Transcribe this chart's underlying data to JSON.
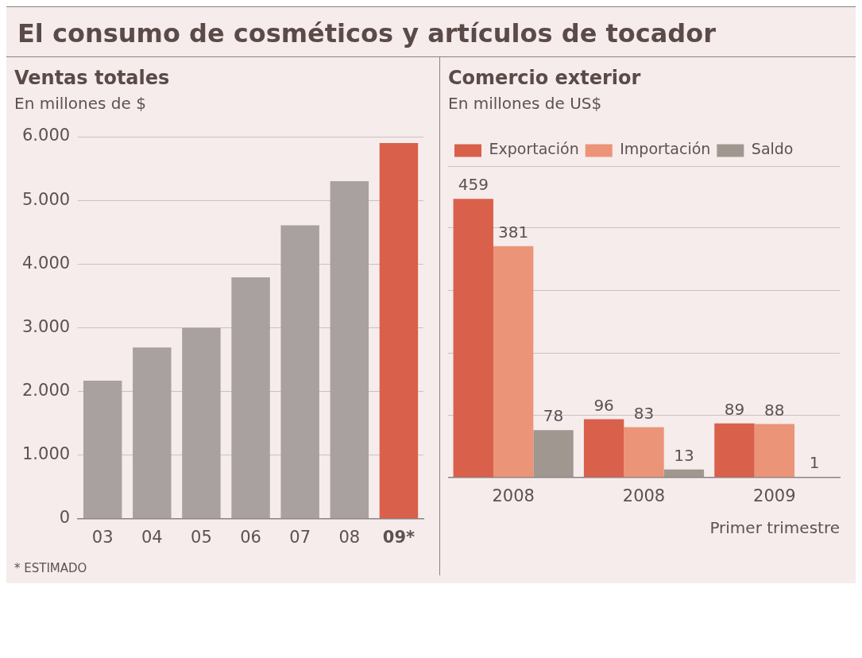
{
  "chart_data": [
    {
      "type": "bar",
      "title": "El consumo de cosméticos y artículos de tocador",
      "subtitle": "Ventas totales",
      "ylabel": "En millones de $",
      "categories": [
        "03",
        "04",
        "05",
        "06",
        "07",
        "08",
        "09*"
      ],
      "values": [
        2170,
        2690,
        3000,
        3790,
        4610,
        5300,
        5900
      ],
      "colors": [
        "#a9a19f",
        "#a9a19f",
        "#a9a19f",
        "#a9a19f",
        "#a9a19f",
        "#a9a19f",
        "#d9604a"
      ],
      "ylim": [
        0,
        6000
      ],
      "yticks": [
        {
          "value": 0,
          "label": "0"
        },
        {
          "value": 1000,
          "label": "1.000"
        },
        {
          "value": 2000,
          "label": "2.000"
        },
        {
          "value": 3000,
          "label": "3.000"
        },
        {
          "value": 4000,
          "label": "4.000"
        },
        {
          "value": 5000,
          "label": "5.000"
        },
        {
          "value": 6000,
          "label": "6.000"
        }
      ],
      "grid": "y",
      "legend": false,
      "annotations": [
        "* ESTIMADO"
      ]
    },
    {
      "type": "bar",
      "title": "Comercio exterior",
      "ylabel": "En millones de US$",
      "xlabel": "Primer trimestre",
      "categories": [
        "2008",
        "2008",
        "2009"
      ],
      "series": [
        {
          "name": "Exportación",
          "color": "#d9604a",
          "values": [
            459,
            96,
            89
          ]
        },
        {
          "name": "Importación",
          "color": "#eb9478",
          "values": [
            381,
            83,
            88
          ]
        },
        {
          "name": "Saldo",
          "color": "#a09890",
          "values": [
            78,
            13,
            1
          ]
        }
      ],
      "ylim": [
        0,
        513
      ],
      "yticks": [
        {
          "value": 0,
          "label": null
        },
        {
          "value": 103,
          "label": null
        },
        {
          "value": 205,
          "label": null
        },
        {
          "value": 308,
          "label": null
        },
        {
          "value": 411,
          "label": null
        },
        {
          "value": 513,
          "label": null
        }
      ],
      "tick_labels": "x",
      "grid": "y",
      "legend": "top left",
      "data_labels": true
    }
  ]
}
